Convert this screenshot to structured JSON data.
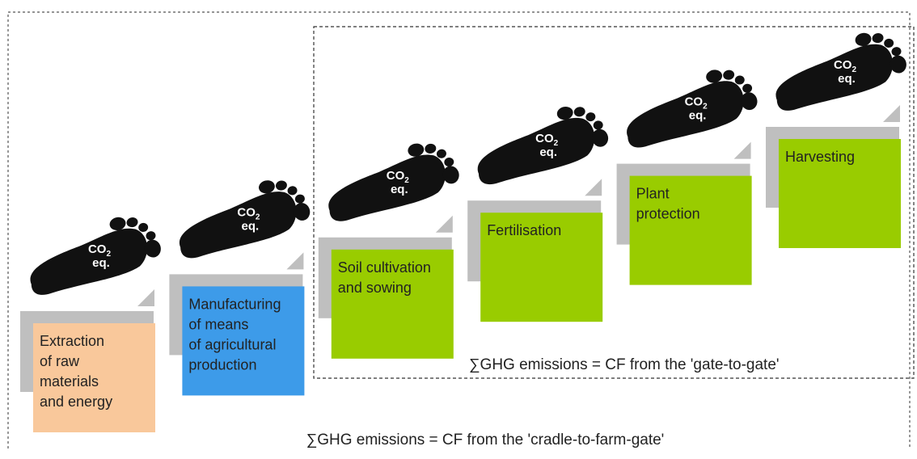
{
  "footprint_label": {
    "main": "CO",
    "sub": "2",
    "unit": "eq."
  },
  "steps": [
    {
      "lines": [
        "Extraction",
        "of raw",
        "materials",
        "and energy"
      ],
      "color": "#f9c89b"
    },
    {
      "lines": [
        "Manufacturing",
        "of means",
        "of agricultural",
        "production"
      ],
      "color": "#3d9be9"
    },
    {
      "lines": [
        "Soil cultivation",
        "and sowing"
      ],
      "color": "#99cc00"
    },
    {
      "lines": [
        "Fertilisation"
      ],
      "color": "#99cc00"
    },
    {
      "lines": [
        "Plant",
        "protection"
      ],
      "color": "#99cc00"
    },
    {
      "lines": [
        "Harvesting"
      ],
      "color": "#99cc00"
    }
  ],
  "gate_to_gate_label": "∑GHG emissions = CF from the 'gate-to-gate'",
  "cradle_to_farm_gate_label": "∑GHG emissions = CF from the 'cradle-to-farm-gate'"
}
